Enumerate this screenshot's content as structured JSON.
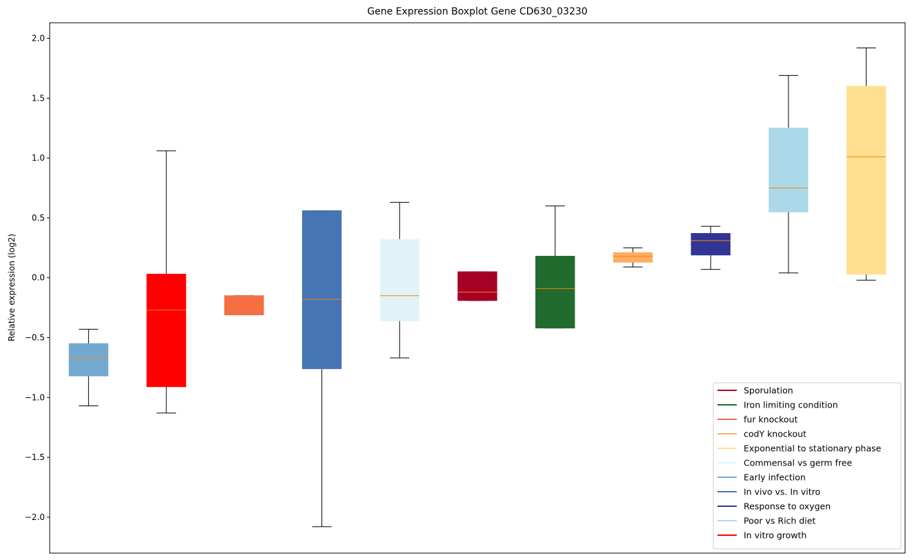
{
  "chart_data": {
    "type": "box",
    "title": "Gene Expression Boxplot Gene CD630_03230",
    "xlabel": "",
    "ylabel": "Relative expression (log2)",
    "ylim": [
      -2.3,
      2.13
    ],
    "yticks": [
      {
        "value": 2.0,
        "label": "2.0"
      },
      {
        "value": 1.5,
        "label": "1.5"
      },
      {
        "value": 1.0,
        "label": "1.0"
      },
      {
        "value": 0.5,
        "label": "0.5"
      },
      {
        "value": 0.0,
        "label": "0.0"
      },
      {
        "value": -0.5,
        "label": "−0.5"
      },
      {
        "value": -1.0,
        "label": "−1.0"
      },
      {
        "value": -1.5,
        "label": "−1.5"
      },
      {
        "value": -2.0,
        "label": "−2.0"
      }
    ],
    "grid": false,
    "legend_position": "lower-right",
    "median_color": "#ff7f0e",
    "boxes": [
      {
        "color": "#74a9cf",
        "whisker_low": -1.07,
        "q1": -0.82,
        "median": -0.67,
        "q3": -0.55,
        "whisker_high": -0.43
      },
      {
        "color": "#ff0000",
        "whisker_low": -1.13,
        "q1": -0.91,
        "median": -0.27,
        "q3": 0.03,
        "whisker_high": 1.06
      },
      {
        "color": "#f46d43",
        "whisker_low": -0.31,
        "q1": -0.31,
        "median": -0.23,
        "q3": -0.15,
        "whisker_high": -0.15
      },
      {
        "color": "#4575b4",
        "whisker_low": -2.08,
        "q1": -0.76,
        "median": -0.18,
        "q3": 0.56,
        "whisker_high": 0.56
      },
      {
        "color": "#e0f3f8",
        "whisker_low": -0.67,
        "q1": -0.36,
        "median": -0.15,
        "q3": 0.32,
        "whisker_high": 0.63
      },
      {
        "color": "#a50026",
        "whisker_low": -0.19,
        "q1": -0.19,
        "median": -0.12,
        "q3": 0.05,
        "whisker_high": 0.05
      },
      {
        "color": "#226b2e",
        "whisker_low": -0.42,
        "q1": -0.42,
        "median": -0.09,
        "q3": 0.18,
        "whisker_high": 0.6
      },
      {
        "color": "#fdae61",
        "whisker_low": 0.09,
        "q1": 0.13,
        "median": 0.18,
        "q3": 0.21,
        "whisker_high": 0.25
      },
      {
        "color": "#313695",
        "whisker_low": 0.07,
        "q1": 0.19,
        "median": 0.31,
        "q3": 0.37,
        "whisker_high": 0.43
      },
      {
        "color": "#abd9e9",
        "whisker_low": 0.04,
        "q1": 0.55,
        "median": 0.75,
        "q3": 1.25,
        "whisker_high": 1.69
      },
      {
        "color": "#fee090",
        "whisker_low": -0.02,
        "q1": 0.03,
        "median": 1.01,
        "q3": 1.6,
        "whisker_high": 1.92
      }
    ],
    "legend": [
      {
        "label": "Sporulation",
        "color": "#a50026"
      },
      {
        "label": "Iron limiting condition",
        "color": "#226b2e"
      },
      {
        "label": "fur knockout",
        "color": "#f46d43"
      },
      {
        "label": "codY knockout",
        "color": "#fdae61"
      },
      {
        "label": "Exponential to stationary phase",
        "color": "#fee090"
      },
      {
        "label": "Commensal vs germ free",
        "color": "#e0f3f8"
      },
      {
        "label": "Early infection",
        "color": "#74a9cf"
      },
      {
        "label": "In vivo vs. In vitro",
        "color": "#4575b4"
      },
      {
        "label": "Response to oxygen",
        "color": "#313695"
      },
      {
        "label": "Poor vs Rich diet",
        "color": "#abd9e9"
      },
      {
        "label": "In vitro growth",
        "color": "#ff0000"
      }
    ]
  }
}
